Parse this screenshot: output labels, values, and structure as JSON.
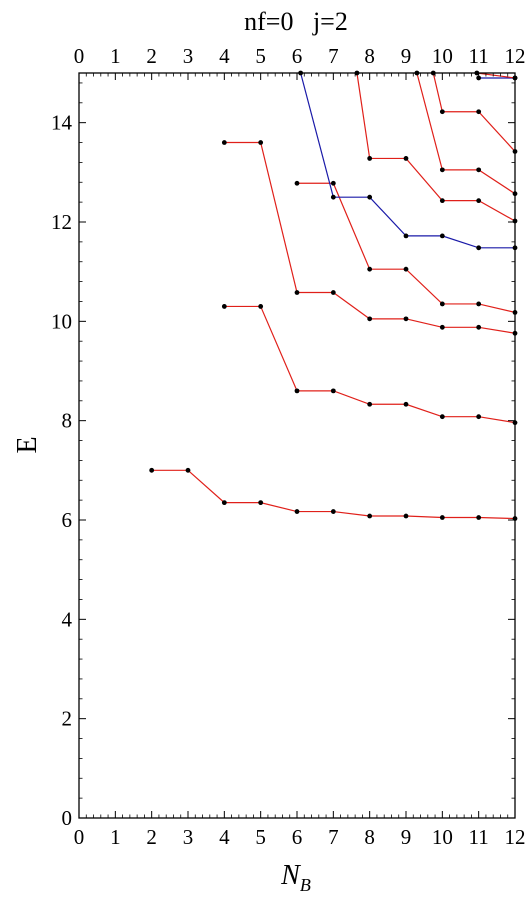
{
  "chart_data": {
    "type": "line",
    "title": "nf=0   j=2",
    "xlabel": "N",
    "xlabel_subscript": "B",
    "ylabel": "E",
    "xlim": [
      0,
      12
    ],
    "ylim": [
      0,
      15
    ],
    "x_ticks": [
      "0",
      "1",
      "2",
      "3",
      "4",
      "5",
      "6",
      "7",
      "8",
      "9",
      "10",
      "11",
      "12"
    ],
    "y_ticks": [
      "0",
      "2",
      "4",
      "6",
      "8",
      "10",
      "12",
      "14"
    ],
    "grid": false,
    "series_colors": {
      "red": "#e0201a",
      "blue": "#1a1aa8"
    },
    "series": [
      {
        "color": "red",
        "points": [
          [
            2,
            7.0
          ],
          [
            3,
            7.0
          ],
          [
            4,
            6.35
          ],
          [
            5,
            6.35
          ],
          [
            6,
            6.17
          ],
          [
            7,
            6.17
          ],
          [
            8,
            6.08
          ],
          [
            9,
            6.08
          ],
          [
            10,
            6.05
          ],
          [
            11,
            6.05
          ],
          [
            12,
            6.03
          ]
        ]
      },
      {
        "color": "red",
        "points": [
          [
            4,
            10.3
          ],
          [
            5,
            10.3
          ],
          [
            6,
            8.6
          ],
          [
            7,
            8.6
          ],
          [
            8,
            8.33
          ],
          [
            9,
            8.33
          ],
          [
            10,
            8.08
          ],
          [
            11,
            8.08
          ],
          [
            12,
            7.96
          ]
        ]
      },
      {
        "color": "red",
        "points": [
          [
            4,
            13.6
          ],
          [
            5,
            13.6
          ],
          [
            6,
            10.58
          ],
          [
            7,
            10.58
          ],
          [
            8,
            10.05
          ],
          [
            9,
            10.05
          ],
          [
            10,
            9.88
          ],
          [
            11,
            9.88
          ],
          [
            12,
            9.76
          ]
        ]
      },
      {
        "color": "red",
        "points": [
          [
            6,
            12.78
          ],
          [
            7,
            12.78
          ],
          [
            8,
            11.05
          ],
          [
            9,
            11.05
          ],
          [
            10,
            10.35
          ],
          [
            11,
            10.35
          ],
          [
            12,
            10.18
          ]
        ]
      },
      {
        "color": "blue",
        "points": [
          [
            6.1,
            15.0
          ],
          [
            7,
            12.5
          ],
          [
            8,
            12.5
          ],
          [
            9,
            11.72
          ],
          [
            10,
            11.72
          ],
          [
            11,
            11.48
          ],
          [
            12,
            11.48
          ]
        ]
      },
      {
        "color": "red",
        "points": [
          [
            7.65,
            15.0
          ],
          [
            8,
            13.28
          ],
          [
            9,
            13.28
          ],
          [
            10,
            12.43
          ],
          [
            11,
            12.43
          ],
          [
            12,
            12.02
          ]
        ]
      },
      {
        "color": "red",
        "points": [
          [
            9.3,
            15.0
          ],
          [
            10,
            13.05
          ],
          [
            11,
            13.05
          ],
          [
            12,
            12.57
          ]
        ]
      },
      {
        "color": "red",
        "points": [
          [
            9.75,
            15.0
          ],
          [
            10,
            14.22
          ],
          [
            11,
            14.22
          ],
          [
            12,
            13.42
          ]
        ]
      },
      {
        "color": "blue",
        "points": [
          [
            11,
            14.9
          ],
          [
            12,
            14.9
          ]
        ]
      },
      {
        "color": "red",
        "points": [
          [
            10.95,
            15.0
          ],
          [
            12,
            14.9
          ]
        ]
      }
    ]
  }
}
